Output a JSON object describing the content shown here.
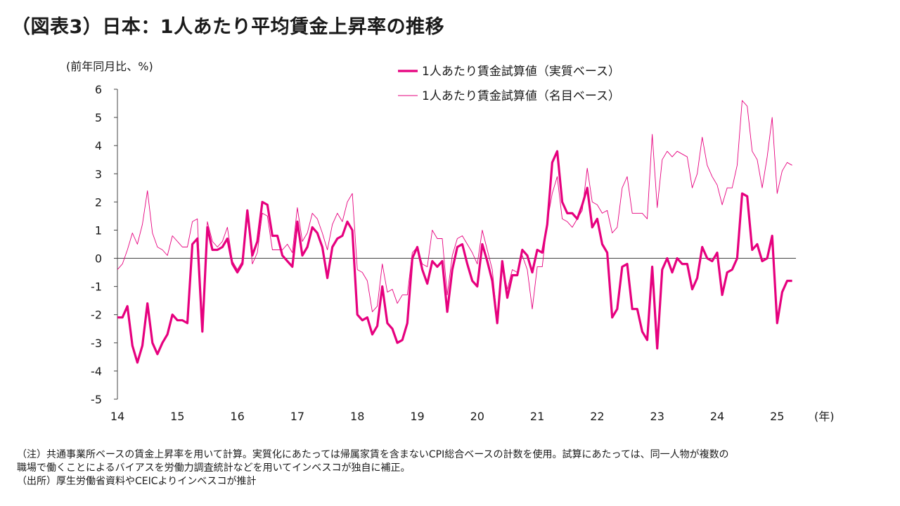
{
  "title": "（図表3）日本：1人あたり平均賃金上昇率の推移",
  "notes": [
    "（注）共通事業所ベースの賃金上昇率を用いて計算。実質化にあたっては帰属家賃を含まないCPI総合ベースの計数を使用。試算にあたっては、同一人物が複数の",
    "職場で働くことによるバイアスを労働力調査統計などを用いてインベスコが独自に補正。",
    "（出所）厚生労働省資料やCEICよりインベスコが推計"
  ],
  "chart_data": {
    "type": "line",
    "ylabel": "(前年同月比、%)",
    "xlabel": "(年)",
    "ylim": [
      -5,
      6
    ],
    "yticks": [
      "6",
      "5",
      "4",
      "3",
      "2",
      "1",
      "0",
      "-1",
      "-2",
      "-3",
      "-4",
      "-5"
    ],
    "xticks": [
      "14",
      "15",
      "16",
      "17",
      "18",
      "19",
      "20",
      "21",
      "22",
      "23",
      "24",
      "25"
    ],
    "x_start": "2014-01",
    "x_end": "2025-04",
    "legend_position": "top-center",
    "grid": false,
    "series": [
      {
        "name": "1人あたり賃金試算値（実質ベース）",
        "color": "#e6007e",
        "values": [
          -2.1,
          -2.1,
          -1.7,
          -3.1,
          -3.7,
          -3.1,
          -1.6,
          -3.0,
          -3.4,
          -3.0,
          -2.7,
          -2.0,
          -2.2,
          -2.2,
          -2.3,
          0.5,
          0.7,
          -2.6,
          1.1,
          0.3,
          0.3,
          0.4,
          0.7,
          -0.2,
          -0.5,
          -0.2,
          1.7,
          0.1,
          0.6,
          2.0,
          1.9,
          0.8,
          0.8,
          0.1,
          -0.1,
          -0.3,
          1.3,
          0.1,
          0.4,
          1.1,
          0.9,
          0.4,
          -0.7,
          0.4,
          0.7,
          0.8,
          1.3,
          1.0,
          -2.0,
          -2.2,
          -2.1,
          -2.7,
          -2.4,
          -1.0,
          -2.3,
          -2.5,
          -3.0,
          -2.9,
          -2.3,
          0.0,
          0.4,
          -0.4,
          -0.9,
          -0.1,
          -0.3,
          -0.1,
          -1.9,
          -0.4,
          0.4,
          0.5,
          -0.2,
          -0.8,
          -1.0,
          0.5,
          -0.1,
          -0.8,
          -2.3,
          -0.1,
          -1.4,
          -0.6,
          -0.6,
          0.3,
          0.1,
          -0.5,
          0.3,
          0.2,
          1.2,
          3.4,
          3.8,
          2.0,
          1.6,
          1.6,
          1.4,
          1.9,
          2.5,
          1.1,
          1.4,
          0.5,
          0.2,
          -2.1,
          -1.8,
          -0.3,
          -0.2,
          -1.8,
          -1.8,
          -2.6,
          -2.9,
          -0.3,
          -3.2,
          -0.4,
          0.0,
          -0.5,
          0.0,
          -0.2,
          -0.2,
          -1.1,
          -0.7,
          0.4,
          0.0,
          -0.1,
          0.2,
          -1.3,
          -0.5,
          -0.4,
          0.0,
          2.3,
          2.2,
          0.3,
          0.5,
          -0.1,
          0.0,
          0.8,
          -2.3,
          -1.2,
          -0.8,
          -0.8
        ]
      },
      {
        "name": "1人あたり賃金試算値（名目ベース）",
        "color": "#e6007e",
        "values": [
          -0.4,
          -0.2,
          0.3,
          0.9,
          0.5,
          1.2,
          2.4,
          0.9,
          0.4,
          0.3,
          0.1,
          0.8,
          0.6,
          0.4,
          0.4,
          1.3,
          1.4,
          -2.5,
          1.3,
          0.6,
          0.4,
          0.6,
          1.1,
          -0.1,
          -0.4,
          -0.1,
          1.6,
          -0.2,
          0.2,
          1.6,
          1.5,
          0.3,
          0.3,
          0.3,
          0.5,
          0.2,
          1.8,
          0.6,
          0.9,
          1.6,
          1.4,
          0.9,
          0.3,
          1.2,
          1.6,
          1.3,
          2.0,
          2.3,
          -0.4,
          -0.5,
          -0.8,
          -1.9,
          -1.7,
          -0.2,
          -1.2,
          -1.1,
          -1.6,
          -1.3,
          -1.3,
          0.2,
          0.4,
          -0.2,
          -0.3,
          1.0,
          0.7,
          0.7,
          -1.3,
          0.1,
          0.7,
          0.8,
          0.5,
          0.2,
          -0.2,
          1.0,
          0.3,
          -0.4,
          -2.2,
          -0.2,
          -1.1,
          -0.4,
          -0.5,
          0.1,
          -0.4,
          -1.8,
          -0.3,
          -0.3,
          1.3,
          2.3,
          2.9,
          1.4,
          1.3,
          1.1,
          1.4,
          1.7,
          3.2,
          2.0,
          1.9,
          1.6,
          1.7,
          0.9,
          1.1,
          2.5,
          2.9,
          1.6,
          1.6,
          1.6,
          1.4,
          4.4,
          1.8,
          3.5,
          3.8,
          3.6,
          3.8,
          3.7,
          3.6,
          2.5,
          3.0,
          4.3,
          3.3,
          2.9,
          2.6,
          1.9,
          2.5,
          2.5,
          3.3,
          5.6,
          5.4,
          3.8,
          3.5,
          2.5,
          3.6,
          5.0,
          2.3,
          3.1,
          3.4,
          3.3
        ]
      }
    ]
  }
}
